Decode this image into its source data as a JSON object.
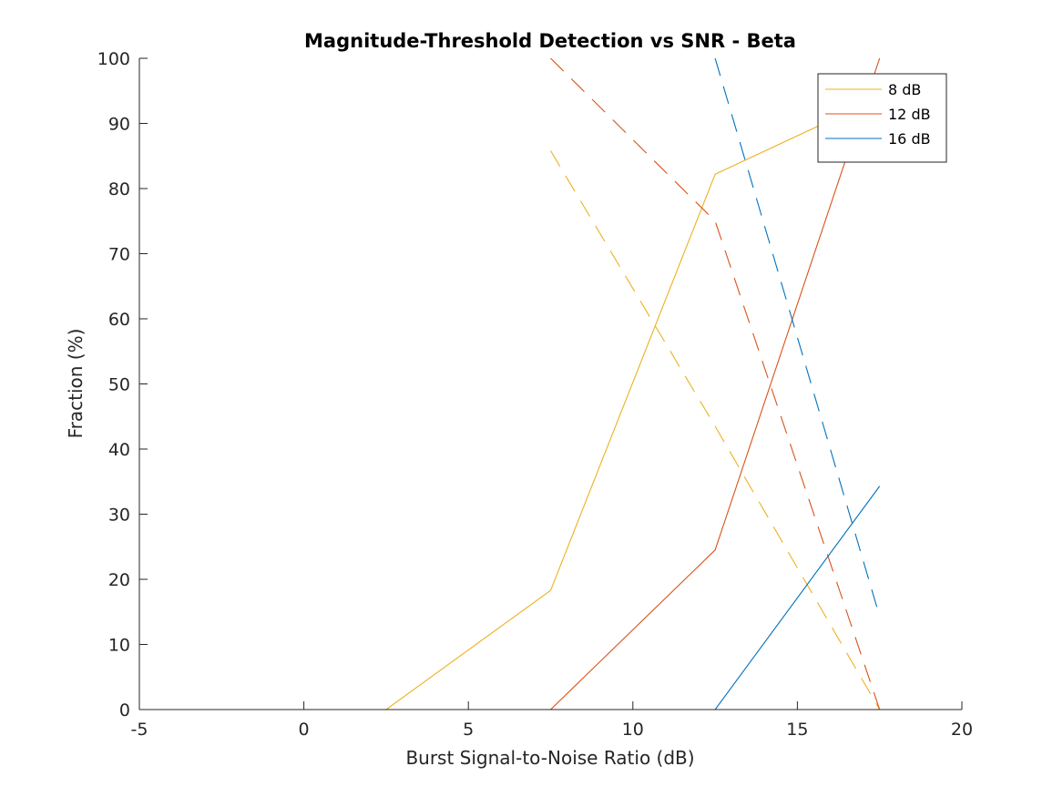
{
  "chart_data": {
    "type": "line",
    "title": "Magnitude-Threshold Detection vs SNR - Beta",
    "xlabel": "Burst Signal-to-Noise Ratio (dB)",
    "ylabel": "Fraction (%)",
    "xlim": [
      -5,
      20
    ],
    "ylim": [
      0,
      100
    ],
    "xticks": [
      -5,
      0,
      5,
      10,
      15,
      20
    ],
    "yticks": [
      0,
      10,
      20,
      30,
      40,
      50,
      60,
      70,
      80,
      90,
      100
    ],
    "x": [
      -2.5,
      2.5,
      7.5,
      12.5,
      17.5
    ],
    "grid": false,
    "legend_position": "top-right",
    "series": [
      {
        "name": "8 dB",
        "color": "#EDB120",
        "detected": [
          0,
          0,
          18.3,
          82.2,
          94.0
        ],
        "false_positive": [
          null,
          null,
          85.8,
          43.5,
          0
        ]
      },
      {
        "name": "12 dB",
        "color": "#D95319",
        "detected": [
          0,
          0,
          0,
          24.5,
          100
        ],
        "false_positive": [
          null,
          null,
          100,
          75.0,
          0
        ]
      },
      {
        "name": "16 dB",
        "color": "#0072BD",
        "detected": [
          0,
          0,
          0,
          0,
          34.3
        ],
        "false_positive": [
          null,
          null,
          null,
          100,
          14.3
        ]
      }
    ]
  }
}
